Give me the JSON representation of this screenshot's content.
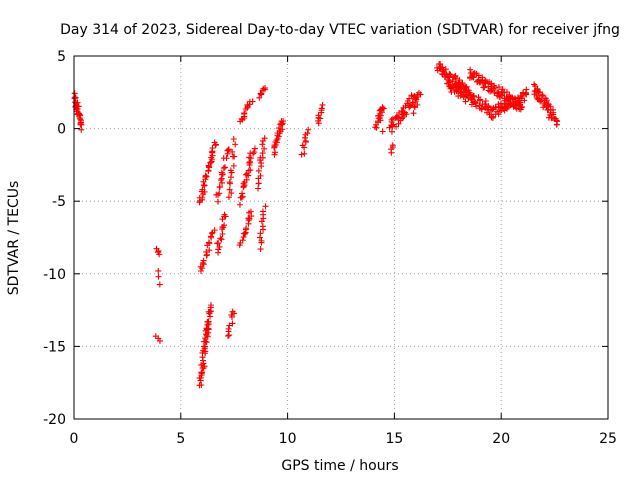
{
  "chart_data": {
    "type": "scatter",
    "title": "Day 314 of 2023, Sidereal Day-to-day VTEC variation (SDTVAR) for receiver jfng",
    "xlabel": "GPS time / hours",
    "ylabel": "SDTVAR / TECUs",
    "xlim": [
      0,
      25
    ],
    "ylim": [
      -20,
      5
    ],
    "xticks": [
      0,
      5,
      10,
      15,
      20,
      25
    ],
    "yticks": [
      -20,
      -15,
      -10,
      -5,
      0,
      5
    ],
    "xtick_labels": [
      "0",
      "5",
      "10",
      "15",
      "20",
      "25"
    ],
    "ytick_labels": [
      "-20",
      "-15",
      "-10",
      "-5",
      "0",
      "5"
    ],
    "grid": true,
    "marker": "+",
    "point_color": "#ff0000",
    "segments": [
      {
        "x": [
          0.0,
          0.35
        ],
        "y": [
          2.2,
          0.2
        ],
        "n": 30,
        "jitter": 0.6
      },
      {
        "x": [
          3.9,
          4.0
        ],
        "y": [
          -8.2,
          -8.6
        ],
        "n": 4,
        "jitter": 0.2
      },
      {
        "x": [
          3.9,
          4.0
        ],
        "y": [
          -9.8,
          -10.8
        ],
        "n": 3,
        "jitter": 0.3
      },
      {
        "x": [
          3.9,
          4.0
        ],
        "y": [
          -14.3,
          -14.6
        ],
        "n": 3,
        "jitter": 0.1
      },
      {
        "x": [
          5.9,
          6.6
        ],
        "y": [
          -5.2,
          -1.0
        ],
        "n": 36,
        "jitter": 0.5
      },
      {
        "x": [
          5.95,
          6.55
        ],
        "y": [
          -9.8,
          -7.0
        ],
        "n": 18,
        "jitter": 0.3
      },
      {
        "x": [
          5.9,
          6.4
        ],
        "y": [
          -17.5,
          -12.2
        ],
        "n": 50,
        "jitter": 0.8
      },
      {
        "x": [
          6.7,
          7.2
        ],
        "y": [
          -5.0,
          -1.3
        ],
        "n": 20,
        "jitter": 0.5
      },
      {
        "x": [
          6.7,
          7.1
        ],
        "y": [
          -8.5,
          -5.8
        ],
        "n": 16,
        "jitter": 0.3
      },
      {
        "x": [
          7.2,
          7.5
        ],
        "y": [
          -14.3,
          -12.5
        ],
        "n": 10,
        "jitter": 0.3
      },
      {
        "x": [
          7.3,
          7.5
        ],
        "y": [
          -4.8,
          -0.9
        ],
        "n": 14,
        "jitter": 0.4
      },
      {
        "x": [
          7.8,
          8.4
        ],
        "y": [
          -5.0,
          -1.3
        ],
        "n": 26,
        "jitter": 0.6
      },
      {
        "x": [
          7.8,
          8.3
        ],
        "y": [
          -8.0,
          -5.6
        ],
        "n": 16,
        "jitter": 0.3
      },
      {
        "x": [
          7.8,
          8.3
        ],
        "y": [
          0.5,
          1.9
        ],
        "n": 14,
        "jitter": 0.2
      },
      {
        "x": [
          8.6,
          8.9
        ],
        "y": [
          -4.0,
          -0.8
        ],
        "n": 16,
        "jitter": 0.4
      },
      {
        "x": [
          8.7,
          8.9
        ],
        "y": [
          -8.2,
          -5.4
        ],
        "n": 12,
        "jitter": 0.2
      },
      {
        "x": [
          8.7,
          8.95
        ],
        "y": [
          2.2,
          2.8
        ],
        "n": 8,
        "jitter": 0.2
      },
      {
        "x": [
          9.3,
          9.8
        ],
        "y": [
          -1.6,
          0.6
        ],
        "n": 24,
        "jitter": 0.6
      },
      {
        "x": [
          10.7,
          10.9
        ],
        "y": [
          -1.8,
          0.0
        ],
        "n": 10,
        "jitter": 0.3
      },
      {
        "x": [
          11.4,
          11.6
        ],
        "y": [
          0.3,
          1.6
        ],
        "n": 10,
        "jitter": 0.3
      },
      {
        "x": [
          14.1,
          14.5
        ],
        "y": [
          0.2,
          1.5
        ],
        "n": 20,
        "jitter": 0.5
      },
      {
        "x": [
          14.4,
          14.5
        ],
        "y": [
          -0.3,
          -0.1
        ],
        "n": 1,
        "jitter": 0.0
      },
      {
        "x": [
          14.85,
          14.95
        ],
        "y": [
          -1.6,
          -1.1
        ],
        "n": 4,
        "jitter": 0.2
      },
      {
        "x": [
          14.8,
          16.0
        ],
        "y": [
          0.0,
          2.3
        ],
        "n": 44,
        "jitter": 0.8
      },
      {
        "x": [
          15.9,
          16.2
        ],
        "y": [
          1.2,
          2.6
        ],
        "n": 10,
        "jitter": 0.3
      },
      {
        "x": [
          17.0,
          18.5
        ],
        "y": [
          4.3,
          2.5
        ],
        "n": 60,
        "jitter": 0.6
      },
      {
        "x": [
          17.5,
          19.5
        ],
        "y": [
          3.0,
          1.3
        ],
        "n": 70,
        "jitter": 0.8
      },
      {
        "x": [
          18.5,
          21.0
        ],
        "y": [
          3.8,
          1.5
        ],
        "n": 90,
        "jitter": 0.7
      },
      {
        "x": [
          19.5,
          21.2
        ],
        "y": [
          1.0,
          2.4
        ],
        "n": 60,
        "jitter": 0.7
      },
      {
        "x": [
          21.5,
          22.6
        ],
        "y": [
          2.8,
          0.6
        ],
        "n": 50,
        "jitter": 0.9
      }
    ]
  }
}
